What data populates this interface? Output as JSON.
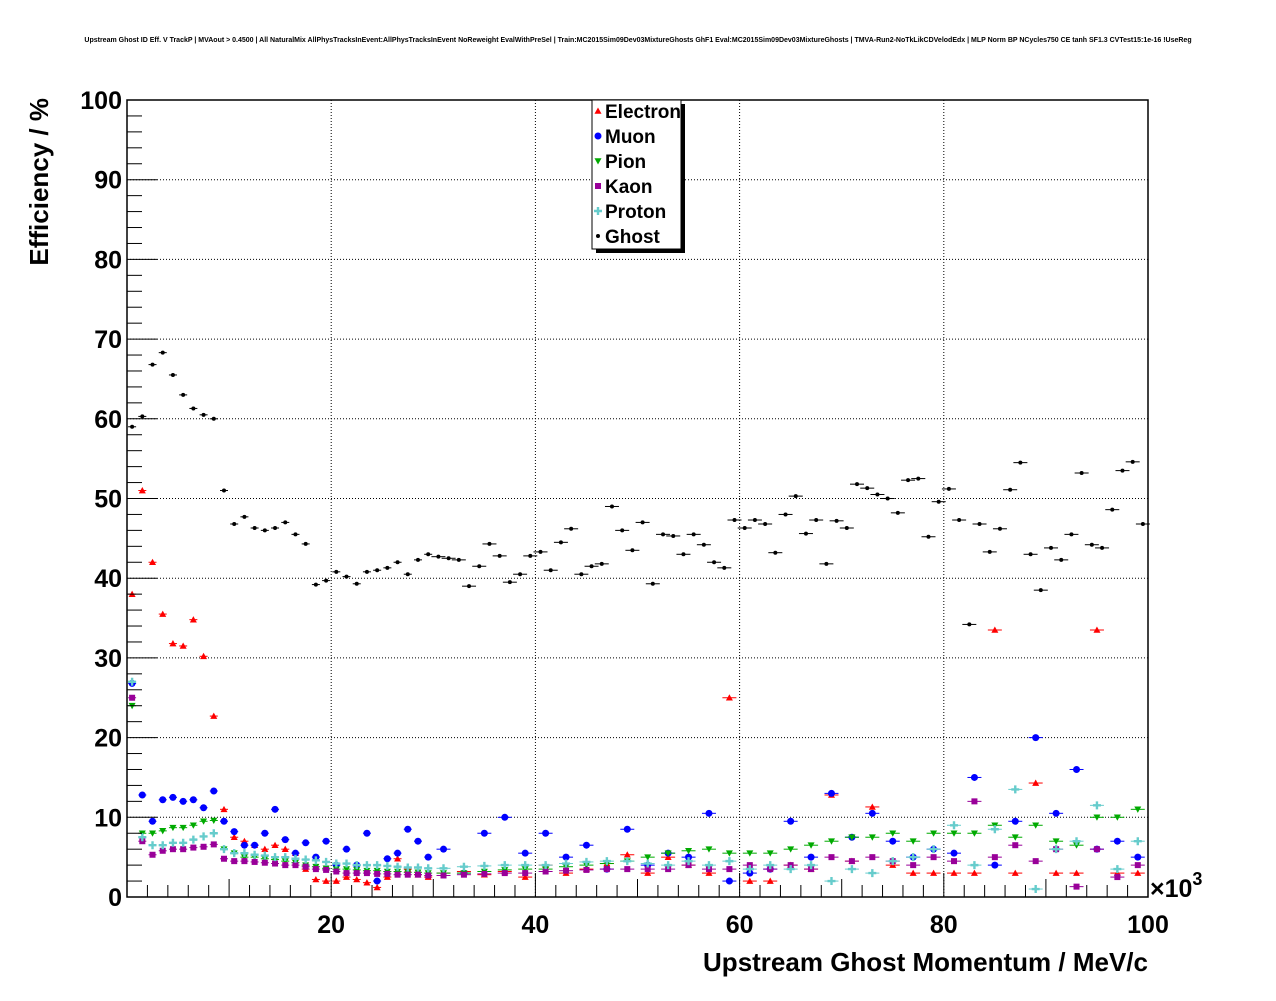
{
  "chart_data": {
    "type": "scatter",
    "title": "Upstream Ghost ID Eff. V TrackP | MVAout > 0.4500 | All NaturalMix AllPhysTracksInEvent:AllPhysTracksInEvent NoReweight EvalWithPreSel | Train:MC2015Sim09Dev03MixtureGhosts GhF1 Eval:MC2015Sim09Dev03MixtureGhosts | TMVA-Run2-NoTkLikCDVelodEdx | MLP Norm BP NCycles750 CE tanh SF1.3 CVTest15:1e-16 !UseReg",
    "xlabel": "Upstream Ghost Momentum / MeV/c",
    "ylabel": "Efficiency / %",
    "x_multiplier_label": "×10",
    "x_multiplier_exp": "3",
    "xlim": [
      0,
      100
    ],
    "ylim": [
      0,
      100
    ],
    "x_ticks": [
      20,
      40,
      60,
      80,
      100
    ],
    "x_tick_labels": [
      "20",
      "40",
      "60",
      "80",
      "100"
    ],
    "y_ticks": [
      0,
      10,
      20,
      30,
      40,
      50,
      60,
      70,
      80,
      90,
      100
    ],
    "y_tick_labels": [
      "0",
      "10",
      "20",
      "30",
      "40",
      "50",
      "60",
      "70",
      "80",
      "90",
      "100"
    ],
    "grid": true,
    "legend_position": "top-center",
    "series": [
      {
        "name": "Electron",
        "color": "#ff0000",
        "marker": "triangle-up",
        "x": [
          0.5,
          1.5,
          2.5,
          3.5,
          4.5,
          5.5,
          6.5,
          7.5,
          8.5,
          9.5,
          10.5,
          11.5,
          12.5,
          13.5,
          14.5,
          15.5,
          16.5,
          17.5,
          18.5,
          19.5,
          20.5,
          21.5,
          22.5,
          23.5,
          24.5,
          25.5,
          26.5,
          27.5,
          28.5,
          29.5,
          31,
          33,
          35,
          37,
          39,
          41,
          43,
          45,
          47,
          49,
          51,
          53,
          55,
          57,
          59,
          61,
          63,
          65,
          67,
          69,
          71,
          73,
          75,
          77,
          79,
          81,
          83,
          85,
          87,
          89,
          91,
          93,
          95,
          97,
          99
        ],
        "y": [
          38,
          51,
          42,
          35.5,
          31.8,
          31.5,
          34.8,
          30.2,
          22.7,
          11,
          7.5,
          7,
          6.5,
          6,
          6.5,
          6,
          5.5,
          3.5,
          2.2,
          2,
          2,
          2.5,
          2.2,
          1.8,
          1.2,
          2.5,
          4.8,
          3.5,
          2.8,
          2.5,
          3,
          3.2,
          2.8,
          3.2,
          2.5,
          4,
          3,
          3.5,
          4.2,
          5.3,
          3,
          5,
          4,
          3,
          25,
          2,
          2,
          4,
          3.5,
          12.8,
          4.5,
          11.3,
          4,
          3,
          3,
          3,
          3,
          33.5,
          3,
          14.3,
          3,
          3,
          33.5,
          3,
          3
        ]
      },
      {
        "name": "Muon",
        "color": "#0000ff",
        "marker": "circle",
        "x": [
          0.5,
          1.5,
          2.5,
          3.5,
          4.5,
          5.5,
          6.5,
          7.5,
          8.5,
          9.5,
          10.5,
          11.5,
          12.5,
          13.5,
          14.5,
          15.5,
          16.5,
          17.5,
          18.5,
          19.5,
          20.5,
          21.5,
          22.5,
          23.5,
          24.5,
          25.5,
          26.5,
          27.5,
          28.5,
          29.5,
          31,
          33,
          35,
          37,
          39,
          41,
          43,
          45,
          47,
          49,
          51,
          53,
          55,
          57,
          59,
          61,
          63,
          65,
          67,
          69,
          71,
          73,
          75,
          77,
          79,
          81,
          83,
          85,
          87,
          89,
          91,
          93,
          95,
          97,
          99
        ],
        "y": [
          26.8,
          12.8,
          9.5,
          12.2,
          12.5,
          12,
          12.2,
          11.2,
          13.3,
          9.5,
          8.2,
          6.5,
          6.5,
          8,
          11,
          7.2,
          5.5,
          6.8,
          5,
          7,
          4,
          6,
          4,
          8,
          2,
          4.8,
          5.5,
          8.5,
          7,
          5,
          6,
          3,
          8,
          10,
          5.5,
          8,
          5,
          6.5,
          3.5,
          8.5,
          4,
          5.5,
          5,
          10.5,
          2,
          3,
          3.5,
          9.5,
          5,
          13,
          7.5,
          10.5,
          7,
          5,
          6,
          5.5,
          15,
          4,
          9.5,
          20,
          10.5,
          16,
          6,
          7,
          5
        ]
      },
      {
        "name": "Pion",
        "color": "#00aa00",
        "marker": "triangle-down",
        "x": [
          0.5,
          1.5,
          2.5,
          3.5,
          4.5,
          5.5,
          6.5,
          7.5,
          8.5,
          9.5,
          10.5,
          11.5,
          12.5,
          13.5,
          14.5,
          15.5,
          16.5,
          17.5,
          18.5,
          19.5,
          20.5,
          21.5,
          22.5,
          23.5,
          24.5,
          25.5,
          26.5,
          27.5,
          28.5,
          29.5,
          31,
          33,
          35,
          37,
          39,
          41,
          43,
          45,
          47,
          49,
          51,
          53,
          55,
          57,
          59,
          61,
          63,
          65,
          67,
          69,
          71,
          73,
          75,
          77,
          79,
          81,
          83,
          85,
          87,
          89,
          91,
          93,
          95,
          97,
          99
        ],
        "y": [
          24,
          8,
          8,
          8.3,
          8.7,
          8.7,
          9,
          9.5,
          9.6,
          6,
          5.5,
          5,
          5,
          4.8,
          4.7,
          4.5,
          4.3,
          4,
          3.8,
          3.6,
          3.5,
          3.5,
          3.4,
          3.3,
          3.3,
          3.2,
          3.2,
          3.1,
          3.1,
          3,
          3,
          3,
          3.2,
          3.4,
          3.5,
          3.5,
          3.8,
          4,
          4.2,
          4.5,
          5,
          5.5,
          5.8,
          6,
          5.5,
          5.5,
          5.5,
          6,
          6.5,
          7,
          7.5,
          7.5,
          8,
          7,
          8,
          8,
          8,
          9,
          7.5,
          9,
          7,
          6.5,
          10,
          10,
          11
        ]
      },
      {
        "name": "Kaon",
        "color": "#990099",
        "marker": "square",
        "x": [
          0.5,
          1.5,
          2.5,
          3.5,
          4.5,
          5.5,
          6.5,
          7.5,
          8.5,
          9.5,
          10.5,
          11.5,
          12.5,
          13.5,
          14.5,
          15.5,
          16.5,
          17.5,
          18.5,
          19.5,
          20.5,
          21.5,
          22.5,
          23.5,
          24.5,
          25.5,
          26.5,
          27.5,
          28.5,
          29.5,
          31,
          33,
          35,
          37,
          39,
          41,
          43,
          45,
          47,
          49,
          51,
          53,
          55,
          57,
          59,
          61,
          63,
          65,
          67,
          69,
          71,
          73,
          75,
          77,
          79,
          81,
          83,
          85,
          87,
          89,
          91,
          93,
          95,
          97,
          99
        ],
        "y": [
          25,
          7,
          5.3,
          5.8,
          6,
          6,
          6.2,
          6.3,
          6.6,
          4.8,
          4.5,
          4.5,
          4.4,
          4.3,
          4.2,
          4,
          4,
          3.8,
          3.5,
          3.4,
          3.2,
          3,
          3,
          3,
          2.9,
          2.9,
          2.8,
          2.8,
          2.8,
          2.7,
          2.7,
          2.8,
          2.9,
          3,
          3,
          3.2,
          3.3,
          3.4,
          3.5,
          3.5,
          3.5,
          3.5,
          4,
          3.5,
          3.5,
          4,
          3.5,
          4,
          3.5,
          5,
          4.5,
          5,
          4.5,
          4,
          5,
          4.5,
          12,
          5,
          6.5,
          4.5,
          6,
          1.3,
          6,
          2.5,
          4
        ]
      },
      {
        "name": "Proton",
        "color": "#66cccc",
        "marker": "cross",
        "x": [
          0.5,
          1.5,
          2.5,
          3.5,
          4.5,
          5.5,
          6.5,
          7.5,
          8.5,
          9.5,
          10.5,
          11.5,
          12.5,
          13.5,
          14.5,
          15.5,
          16.5,
          17.5,
          18.5,
          19.5,
          20.5,
          21.5,
          22.5,
          23.5,
          24.5,
          25.5,
          26.5,
          27.5,
          28.5,
          29.5,
          31,
          33,
          35,
          37,
          39,
          41,
          43,
          45,
          47,
          49,
          51,
          53,
          55,
          57,
          59,
          61,
          63,
          65,
          67,
          69,
          71,
          73,
          75,
          77,
          79,
          81,
          83,
          85,
          87,
          89,
          91,
          93,
          95,
          97,
          99
        ],
        "y": [
          27,
          7.5,
          6.5,
          6.5,
          6.8,
          6.8,
          7.2,
          7.6,
          8,
          6,
          5.5,
          5.5,
          5.3,
          5.2,
          5,
          5,
          4.8,
          4.7,
          4.6,
          4.4,
          4.2,
          4.2,
          4,
          4,
          4,
          3.9,
          3.8,
          3.7,
          3.7,
          3.6,
          3.6,
          3.8,
          3.9,
          4,
          4,
          4,
          4.2,
          4.4,
          4.5,
          4.5,
          4.2,
          4,
          4.5,
          4,
          4.5,
          3.5,
          4,
          3.5,
          4,
          2,
          3.5,
          3,
          4.5,
          5,
          6,
          9,
          4,
          8.5,
          13.5,
          1,
          6,
          7,
          11.5,
          3.5,
          7
        ]
      },
      {
        "name": "Ghost",
        "color": "#000000",
        "marker": "dot",
        "x": [
          0.5,
          1.5,
          2.5,
          3.5,
          4.5,
          5.5,
          6.5,
          7.5,
          8.5,
          9.5,
          10.5,
          11.5,
          12.5,
          13.5,
          14.5,
          15.5,
          16.5,
          17.5,
          18.5,
          19.5,
          20.5,
          21.5,
          22.5,
          23.5,
          24.5,
          25.5,
          26.5,
          27.5,
          28.5,
          29.5,
          30.5,
          31.5,
          32.5,
          33.5,
          34.5,
          35.5,
          36.5,
          37.5,
          38.5,
          39.5,
          40.5,
          41.5,
          42.5,
          43.5,
          44.5,
          45.5,
          46.5,
          47.5,
          48.5,
          49.5,
          50.5,
          51.5,
          52.5,
          53.5,
          54.5,
          55.5,
          56.5,
          57.5,
          58.5,
          59.5,
          60.5,
          61.5,
          62.5,
          63.5,
          64.5,
          65.5,
          66.5,
          67.5,
          68.5,
          69.5,
          70.5,
          71.5,
          72.5,
          73.5,
          74.5,
          75.5,
          76.5,
          77.5,
          78.5,
          79.5,
          80.5,
          81.5,
          82.5,
          83.5,
          84.5,
          85.5,
          86.5,
          87.5,
          88.5,
          89.5,
          90.5,
          91.5,
          92.5,
          93.5,
          94.5,
          95.5,
          96.5,
          97.5,
          98.5,
          99.5
        ],
        "y": [
          59,
          60.3,
          66.8,
          68.3,
          65.5,
          63,
          61.3,
          60.5,
          60,
          51,
          46.8,
          47.7,
          46.3,
          46,
          46.3,
          47,
          45.5,
          44.3,
          39.2,
          39.7,
          40.8,
          40.2,
          39.3,
          40.8,
          41,
          41.3,
          42,
          40.5,
          42.3,
          43,
          42.7,
          42.5,
          42.3,
          39,
          41.5,
          44.3,
          42.8,
          39.5,
          40.5,
          42.8,
          43.3,
          41,
          44.5,
          46.2,
          40.5,
          41.5,
          41.8,
          49,
          46,
          43.5,
          47,
          39.3,
          45.5,
          45.3,
          43,
          45.5,
          44.2,
          42,
          41.3,
          47.3,
          46.3,
          47.3,
          46.8,
          43.2,
          48,
          50.3,
          45.6,
          47.3,
          41.8,
          47.2,
          46.3,
          51.8,
          51.3,
          50.5,
          50,
          48.2,
          52.3,
          52.5,
          45.2,
          49.6,
          51.2,
          47.3,
          34.2,
          46.8,
          43.3,
          46.2,
          51.1,
          54.5,
          43,
          38.5,
          43.8,
          42.3,
          45.5,
          53.2,
          44.2,
          43.8,
          48.6,
          53.5,
          54.6,
          46.8
        ]
      }
    ]
  }
}
